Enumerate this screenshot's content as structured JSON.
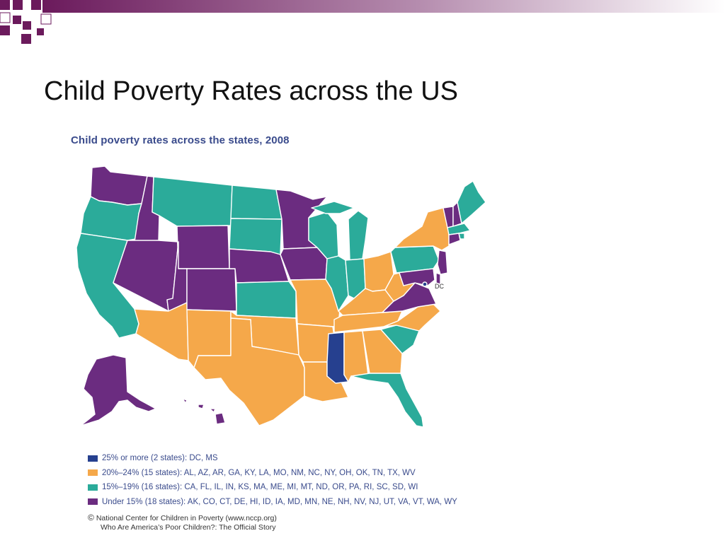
{
  "slide": {
    "title": "Child Poverty Rates across the US",
    "deco_colors": [
      "#6b1a5c",
      "#ffffff"
    ]
  },
  "figure": {
    "map_title": "Child poverty rates across the states, 2008",
    "dc_label": "DC",
    "legend": [
      {
        "label": "25% or more (2 states): DC, MS",
        "color": "#26408f"
      },
      {
        "label": "20%–24% (15 states): AL, AZ, AR, GA, KY, LA, MO, NM, NC, NY, OH, OK, TN, TX, WV",
        "color": "#f5a84a"
      },
      {
        "label": "15%–19% (16 states): CA, FL, IL, IN, KS, MA, ME, MI, MT, ND, OR, PA, RI, SC, SD, WI",
        "color": "#2bab9a"
      },
      {
        "label": "Under 15% (18 states): AK, CO, CT, DE, HI, ID, IA, MD, MN, NE, NH, NV, NJ, UT, VA, VT, WA, WY",
        "color": "#6b2c80"
      }
    ],
    "credits": {
      "symbol": "©",
      "line1": "National Center for Children in Poverty (www.nccp.org)",
      "line2": "Who Are America’s Poor Children?: The Official Story"
    },
    "states": [
      {
        "code": "WA",
        "category": 3
      },
      {
        "code": "OR",
        "category": 2
      },
      {
        "code": "CA",
        "category": 2
      },
      {
        "code": "ID",
        "category": 3
      },
      {
        "code": "NV",
        "category": 3
      },
      {
        "code": "MT",
        "category": 2
      },
      {
        "code": "WY",
        "category": 3
      },
      {
        "code": "UT",
        "category": 3
      },
      {
        "code": "AZ",
        "category": 1
      },
      {
        "code": "CO",
        "category": 3
      },
      {
        "code": "NM",
        "category": 1
      },
      {
        "code": "ND",
        "category": 2
      },
      {
        "code": "SD",
        "category": 2
      },
      {
        "code": "NE",
        "category": 3
      },
      {
        "code": "KS",
        "category": 2
      },
      {
        "code": "OK",
        "category": 1
      },
      {
        "code": "TX",
        "category": 1
      },
      {
        "code": "MN",
        "category": 3
      },
      {
        "code": "IA",
        "category": 3
      },
      {
        "code": "MO",
        "category": 1
      },
      {
        "code": "AR",
        "category": 1
      },
      {
        "code": "LA",
        "category": 1
      },
      {
        "code": "WI",
        "category": 2
      },
      {
        "code": "IL",
        "category": 2
      },
      {
        "code": "MI",
        "category": 2
      },
      {
        "code": "IN",
        "category": 2
      },
      {
        "code": "OH",
        "category": 1
      },
      {
        "code": "KY",
        "category": 1
      },
      {
        "code": "TN",
        "category": 1
      },
      {
        "code": "MS",
        "category": 0
      },
      {
        "code": "AL",
        "category": 1
      },
      {
        "code": "GA",
        "category": 1
      },
      {
        "code": "FL",
        "category": 2
      },
      {
        "code": "SC",
        "category": 2
      },
      {
        "code": "NC",
        "category": 1
      },
      {
        "code": "VA",
        "category": 3
      },
      {
        "code": "WV",
        "category": 1
      },
      {
        "code": "PA",
        "category": 2
      },
      {
        "code": "NY",
        "category": 1
      },
      {
        "code": "ME",
        "category": 2
      },
      {
        "code": "VT",
        "category": 3
      },
      {
        "code": "NH",
        "category": 3
      },
      {
        "code": "MA",
        "category": 2
      },
      {
        "code": "RI",
        "category": 2
      },
      {
        "code": "CT",
        "category": 3
      },
      {
        "code": "NJ",
        "category": 3
      },
      {
        "code": "DE",
        "category": 3
      },
      {
        "code": "MD",
        "category": 3
      },
      {
        "code": "DC",
        "category": 0
      },
      {
        "code": "AK",
        "category": 3
      },
      {
        "code": "HI",
        "category": 3
      }
    ]
  }
}
